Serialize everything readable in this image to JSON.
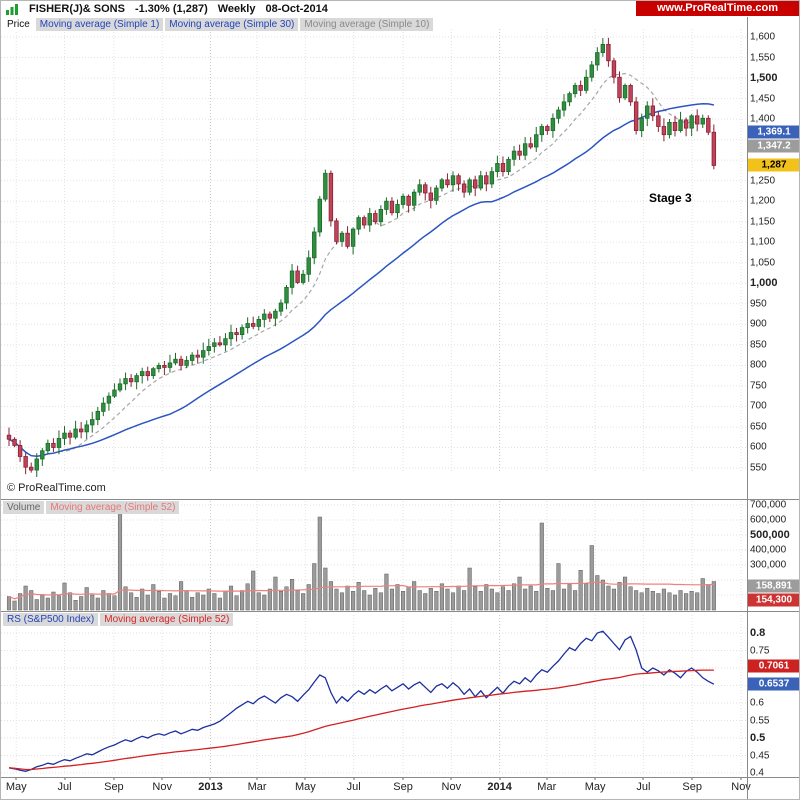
{
  "header": {
    "ticker": "FISHER(J)& SONS",
    "change": "-1.30% (1,287)",
    "period": "Weekly",
    "date": "08-Oct-2014",
    "brand": "www.ProRealTime.com"
  },
  "price_panel": {
    "label": "Price",
    "legend": [
      {
        "label": "Moving average (Simple 1)",
        "color": "#2244bb"
      },
      {
        "label": "Moving average (Simple 30)",
        "color": "#2244bb"
      },
      {
        "label": "Moving average (Simple 10)",
        "color": "#8a8a8a"
      }
    ],
    "annotation": "Stage 3",
    "watermark": "© ProRealTime.com",
    "axis": {
      "min": 550,
      "max": 1600,
      "step": 50,
      "skip": [
        1350,
        1300
      ],
      "bold": [
        1500,
        1000
      ]
    },
    "badges": [
      {
        "label": "1,369.1",
        "value": 1369.1,
        "bg": "#3a62b8",
        "fg": "#ffffff"
      },
      {
        "label": "1,347.2",
        "value": 1347.2,
        "bg": "#9c9c9c",
        "fg": "#ffffff"
      },
      {
        "label": "1,287",
        "value": 1287,
        "bg": "#f2c21b",
        "fg": "#000000"
      }
    ]
  },
  "volume_panel": {
    "label": "Volume",
    "label_color": "#666666",
    "legend": [
      {
        "label": "Moving average (Simple 52)",
        "color": "#e87777"
      }
    ],
    "axis": {
      "min": 0,
      "max": 700000,
      "step": 100000,
      "skip": [
        200000,
        100000
      ],
      "bold": [
        500000
      ]
    },
    "badges": [
      {
        "label": "158,891",
        "value": 158891,
        "bg": "#9c9c9c",
        "fg": "#ffffff"
      },
      {
        "label": "154,300",
        "value": 154300,
        "bg": "#cc3333",
        "fg": "#ffffff"
      }
    ]
  },
  "rs_panel": {
    "label": "RS (S&P500 Index)",
    "label_color": "#2244bb",
    "legend": [
      {
        "label": "Moving average (Simple 52)",
        "color": "#dd2222"
      }
    ],
    "axis": {
      "min": 0.4,
      "max": 0.8,
      "step": 0.05,
      "skip": [
        0.7,
        0.65
      ],
      "bold": [
        0.8,
        0.5
      ]
    },
    "badges": [
      {
        "label": "0.7061",
        "value": 0.7061,
        "bg": "#cc2222",
        "fg": "#ffffff"
      },
      {
        "label": "0.6537",
        "value": 0.6537,
        "bg": "#3a62b8",
        "fg": "#ffffff"
      }
    ]
  },
  "x_axis": {
    "ticks": [
      {
        "label": "May",
        "week": 1.3
      },
      {
        "label": "Jul",
        "week": 10.0
      },
      {
        "label": "Sep",
        "week": 18.9
      },
      {
        "label": "Nov",
        "week": 27.6
      },
      {
        "label": "2013",
        "week": 36.3,
        "bold": true
      },
      {
        "label": "Mar",
        "week": 44.7
      },
      {
        "label": "May",
        "week": 53.4
      },
      {
        "label": "Jul",
        "week": 62.1
      },
      {
        "label": "Sep",
        "week": 71.0
      },
      {
        "label": "Nov",
        "week": 79.7
      },
      {
        "label": "2014",
        "week": 88.4,
        "bold": true
      },
      {
        "label": "Mar",
        "week": 96.9
      },
      {
        "label": "May",
        "week": 105.6
      },
      {
        "label": "Jul",
        "week": 114.3
      },
      {
        "label": "Sep",
        "week": 123.1
      },
      {
        "label": "Nov",
        "week": 131.9
      }
    ]
  },
  "chart_data": [
    {
      "type": "candlestick",
      "title": "FISHER(J)& SONS weekly price",
      "ylabel": "Price",
      "ylim": [
        550,
        1600
      ],
      "closes": [
        620,
        605,
        578,
        552,
        545,
        572,
        592,
        610,
        600,
        622,
        635,
        625,
        645,
        638,
        655,
        668,
        688,
        708,
        725,
        740,
        755,
        768,
        760,
        775,
        785,
        775,
        792,
        800,
        795,
        806,
        815,
        800,
        812,
        825,
        820,
        836,
        846,
        855,
        850,
        865,
        880,
        875,
        892,
        902,
        895,
        912,
        925,
        915,
        932,
        952,
        990,
        1030,
        1002,
        1022,
        1062,
        1125,
        1205,
        1268,
        1152,
        1102,
        1122,
        1090,
        1132,
        1160,
        1142,
        1170,
        1150,
        1180,
        1200,
        1172,
        1192,
        1212,
        1190,
        1222,
        1240,
        1220,
        1202,
        1232,
        1252,
        1240,
        1262,
        1242,
        1222,
        1252,
        1232,
        1262,
        1242,
        1272,
        1292,
        1272,
        1302,
        1322,
        1312,
        1340,
        1332,
        1362,
        1382,
        1372,
        1402,
        1422,
        1442,
        1462,
        1482,
        1470,
        1502,
        1532,
        1562,
        1582,
        1542,
        1502,
        1452,
        1482,
        1442,
        1372,
        1402,
        1432,
        1408,
        1382,
        1362,
        1392,
        1372,
        1398,
        1378,
        1408,
        1388,
        1402,
        1368,
        1287
      ],
      "overlays": [
        {
          "name": "Moving average (Simple 30)",
          "window": 30,
          "style": "solid",
          "color": "#2b55c0"
        },
        {
          "name": "Moving average (Simple 10)",
          "window": 10,
          "style": "dashed",
          "color": "#a8a8a8"
        }
      ]
    },
    {
      "type": "bar",
      "title": "Volume",
      "ylim": [
        0,
        700000
      ],
      "values": [
        90000,
        60000,
        110000,
        160000,
        130000,
        70000,
        100000,
        80000,
        120000,
        95000,
        180000,
        115000,
        65000,
        90000,
        150000,
        100000,
        80000,
        130000,
        110000,
        95000,
        650000,
        155000,
        115000,
        85000,
        140000,
        100000,
        170000,
        125000,
        80000,
        110000,
        95000,
        190000,
        130000,
        85000,
        115000,
        100000,
        140000,
        110000,
        80000,
        125000,
        160000,
        95000,
        130000,
        175000,
        260000,
        115000,
        100000,
        140000,
        220000,
        125000,
        155000,
        205000,
        130000,
        110000,
        170000,
        310000,
        620000,
        280000,
        190000,
        140000,
        115000,
        160000,
        125000,
        185000,
        130000,
        100000,
        145000,
        115000,
        240000,
        140000,
        170000,
        125000,
        155000,
        190000,
        130000,
        110000,
        145000,
        125000,
        175000,
        140000,
        115000,
        160000,
        130000,
        280000,
        155000,
        125000,
        170000,
        140000,
        115000,
        155000,
        130000,
        175000,
        220000,
        140000,
        160000,
        125000,
        580000,
        145000,
        130000,
        310000,
        140000,
        170000,
        130000,
        265000,
        175000,
        430000,
        230000,
        200000,
        160000,
        140000,
        185000,
        220000,
        155000,
        130000,
        115000,
        145000,
        125000,
        110000,
        140000,
        115000,
        100000,
        130000,
        110000,
        125000,
        115000,
        210000,
        170000,
        190000
      ],
      "overlays": [
        {
          "name": "Moving average (Simple 52)",
          "window": 52,
          "color": "#ef8080"
        }
      ]
    },
    {
      "type": "line",
      "title": "RS (S&P500 Index)",
      "ylim": [
        0.4,
        0.8
      ],
      "color": "#1c2f9e",
      "values": [
        0.415,
        0.412,
        0.408,
        0.405,
        0.41,
        0.418,
        0.422,
        0.428,
        0.425,
        0.432,
        0.438,
        0.435,
        0.442,
        0.448,
        0.455,
        0.452,
        0.46,
        0.468,
        0.475,
        0.48,
        0.488,
        0.495,
        0.49,
        0.498,
        0.505,
        0.5,
        0.508,
        0.512,
        0.508,
        0.515,
        0.52,
        0.512,
        0.518,
        0.525,
        0.522,
        0.53,
        0.535,
        0.54,
        0.548,
        0.56,
        0.572,
        0.585,
        0.595,
        0.605,
        0.598,
        0.612,
        0.62,
        0.61,
        0.6,
        0.615,
        0.625,
        0.618,
        0.605,
        0.622,
        0.638,
        0.66,
        0.68,
        0.672,
        0.63,
        0.6,
        0.618,
        0.605,
        0.622,
        0.635,
        0.625,
        0.638,
        0.628,
        0.64,
        0.65,
        0.635,
        0.645,
        0.655,
        0.64,
        0.652,
        0.66,
        0.645,
        0.63,
        0.648,
        0.655,
        0.642,
        0.658,
        0.645,
        0.625,
        0.64,
        0.618,
        0.635,
        0.615,
        0.63,
        0.645,
        0.628,
        0.648,
        0.662,
        0.655,
        0.672,
        0.66,
        0.68,
        0.695,
        0.688,
        0.705,
        0.72,
        0.74,
        0.758,
        0.75,
        0.77,
        0.785,
        0.778,
        0.8,
        0.805,
        0.788,
        0.77,
        0.752,
        0.78,
        0.79,
        0.752,
        0.7,
        0.688,
        0.7,
        0.692,
        0.68,
        0.695,
        0.685,
        0.672,
        0.69,
        0.7,
        0.688,
        0.672,
        0.662,
        0.6537
      ],
      "overlays": [
        {
          "name": "Moving average (Simple 52)",
          "window": 52,
          "color": "#d42020"
        }
      ]
    }
  ]
}
